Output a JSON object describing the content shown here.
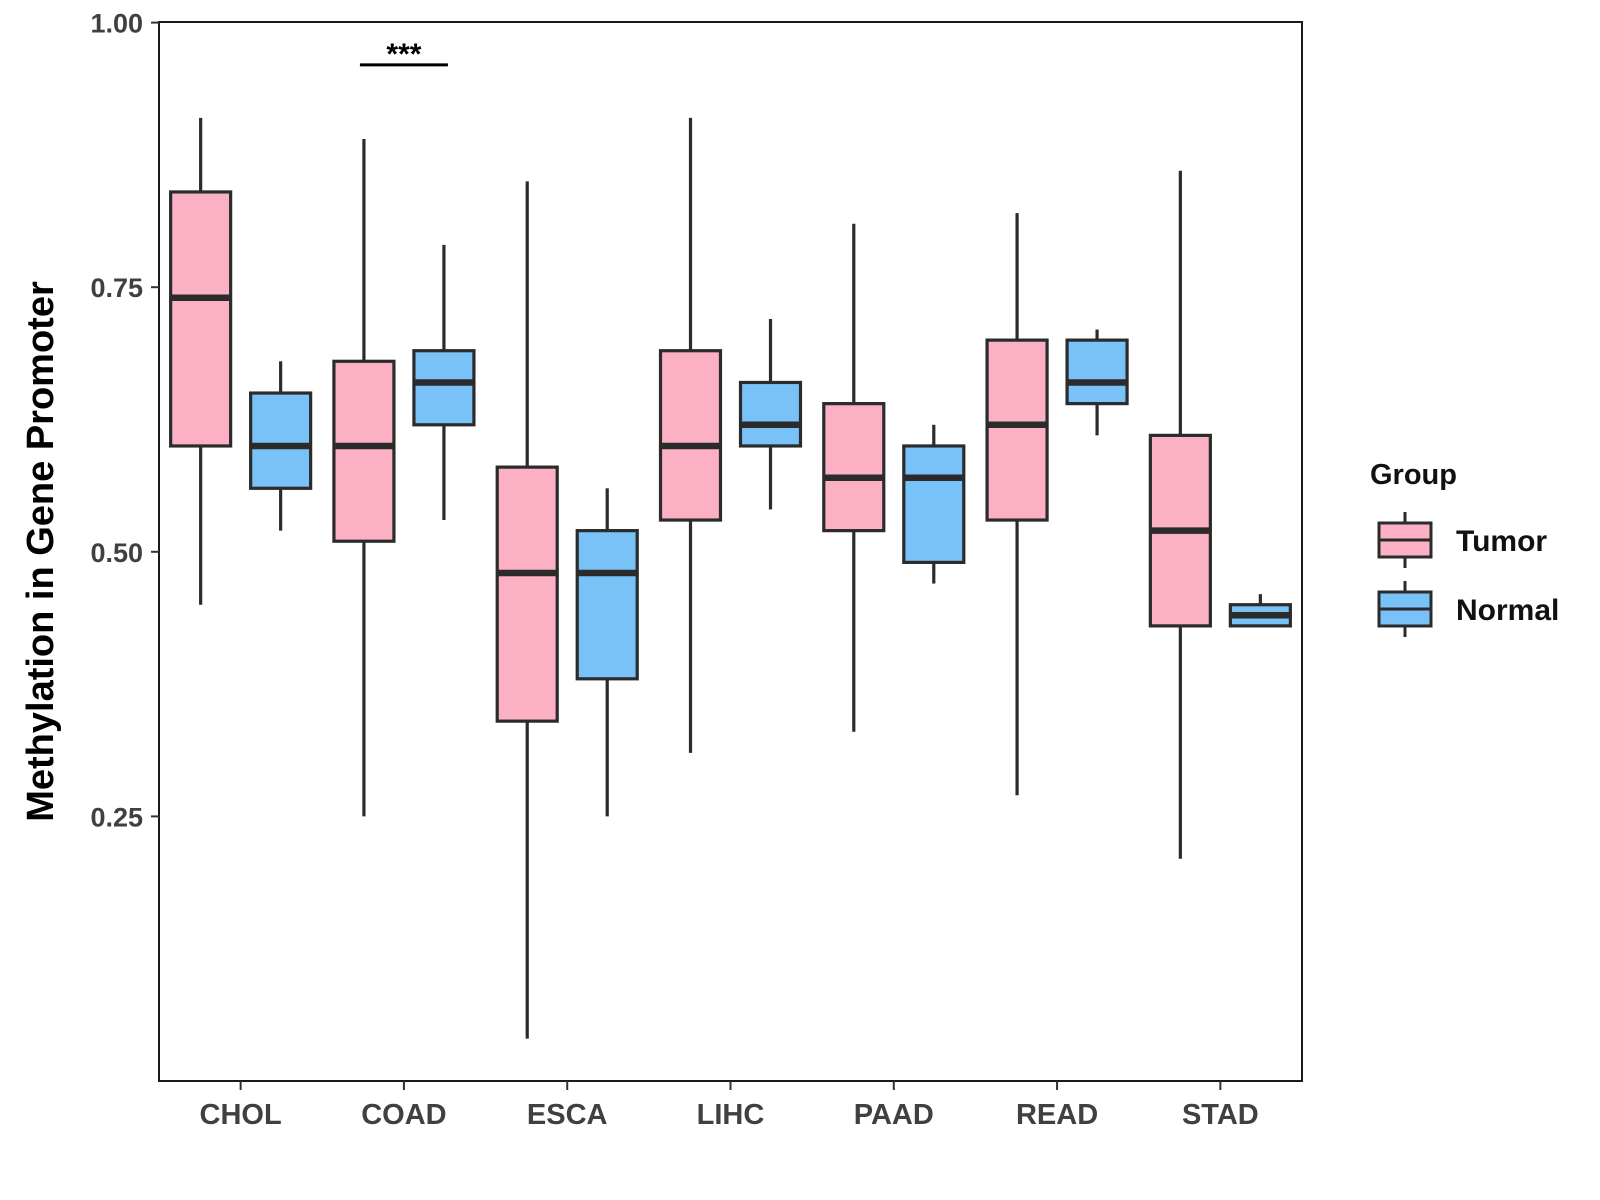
{
  "chart_data": {
    "type": "boxplot",
    "title": "",
    "xlabel": "",
    "ylabel": "Methylation in Gene Promoter",
    "ylim": [
      0.0,
      1.0
    ],
    "yticks": [
      0.25,
      0.5,
      0.75,
      1.0
    ],
    "ytick_labels": [
      "0.25",
      "0.50",
      "0.75",
      "1.00"
    ],
    "categories": [
      "CHOL",
      "COAD",
      "ESCA",
      "LIHC",
      "PAAD",
      "READ",
      "STAD"
    ],
    "grid": false,
    "legend": {
      "title": "Group",
      "position": "right",
      "entries": [
        "Tumor",
        "Normal"
      ]
    },
    "colors": {
      "Tumor": "#fbb0c3",
      "Normal": "#79c2f8",
      "outline": "#2b2b2b"
    },
    "series": [
      {
        "name": "Tumor",
        "boxes": [
          {
            "min": 0.45,
            "q1": 0.6,
            "median": 0.74,
            "q3": 0.84,
            "max": 0.91
          },
          {
            "min": 0.25,
            "q1": 0.51,
            "median": 0.6,
            "q3": 0.68,
            "max": 0.89
          },
          {
            "min": 0.04,
            "q1": 0.34,
            "median": 0.48,
            "q3": 0.58,
            "max": 0.85
          },
          {
            "min": 0.31,
            "q1": 0.53,
            "median": 0.6,
            "q3": 0.69,
            "max": 0.91
          },
          {
            "min": 0.33,
            "q1": 0.52,
            "median": 0.57,
            "q3": 0.64,
            "max": 0.81
          },
          {
            "min": 0.27,
            "q1": 0.53,
            "median": 0.62,
            "q3": 0.7,
            "max": 0.82
          },
          {
            "min": 0.21,
            "q1": 0.43,
            "median": 0.52,
            "q3": 0.61,
            "max": 0.86
          }
        ]
      },
      {
        "name": "Normal",
        "boxes": [
          {
            "min": 0.52,
            "q1": 0.56,
            "median": 0.6,
            "q3": 0.65,
            "max": 0.68
          },
          {
            "min": 0.53,
            "q1": 0.62,
            "median": 0.66,
            "q3": 0.69,
            "max": 0.79
          },
          {
            "min": 0.25,
            "q1": 0.38,
            "median": 0.48,
            "q3": 0.52,
            "max": 0.56
          },
          {
            "min": 0.54,
            "q1": 0.6,
            "median": 0.62,
            "q3": 0.66,
            "max": 0.72
          },
          {
            "min": 0.47,
            "q1": 0.49,
            "median": 0.57,
            "q3": 0.6,
            "max": 0.62
          },
          {
            "min": 0.61,
            "q1": 0.64,
            "median": 0.66,
            "q3": 0.7,
            "max": 0.71
          },
          {
            "min": 0.43,
            "q1": 0.43,
            "median": 0.44,
            "q3": 0.45,
            "max": 0.46
          }
        ]
      }
    ],
    "annotations": [
      {
        "text": "***",
        "category": "COAD",
        "y": 0.96
      }
    ]
  }
}
